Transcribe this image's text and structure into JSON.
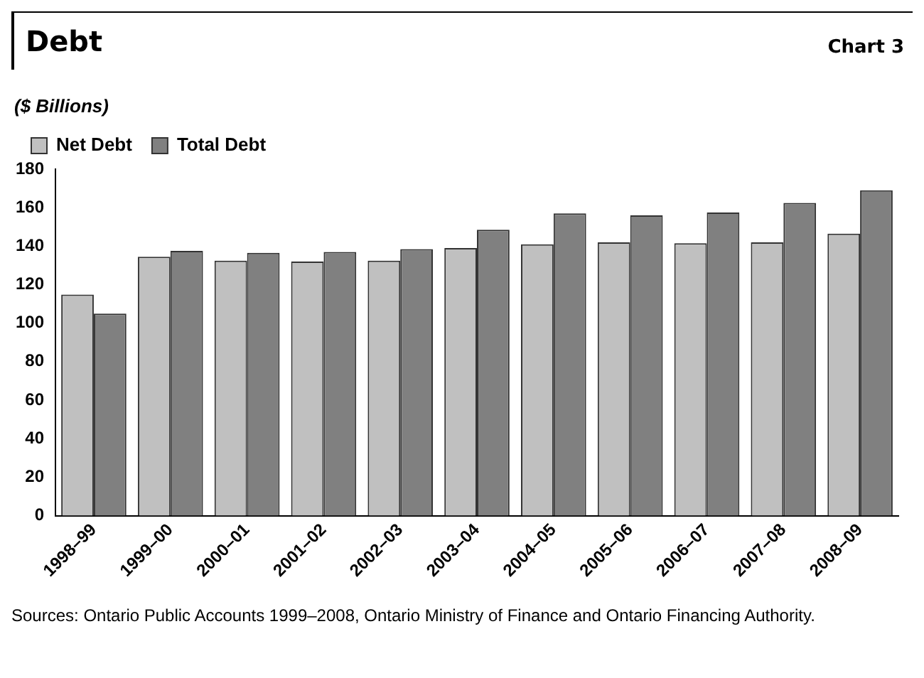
{
  "chart_data": {
    "type": "bar",
    "title": "Debt",
    "subtitle": "Chart 3",
    "ylabel": "($ Billions)",
    "categories": [
      "1998–99",
      "1999–00",
      "2000–01",
      "2001–02",
      "2002–03",
      "2003–04",
      "2004–05",
      "2005–06",
      "2006–07",
      "2007–08",
      "2008–09"
    ],
    "series": [
      {
        "name": "Net Debt",
        "color": "#c0c0c0",
        "values": [
          114.8,
          134.5,
          132.5,
          132,
          132.5,
          139,
          141,
          142,
          141.5,
          142,
          146.5
        ]
      },
      {
        "name": "Total Debt",
        "color": "#808080",
        "values": [
          105,
          137.5,
          136.5,
          137,
          138.5,
          148.5,
          157,
          156,
          157.5,
          162.5,
          169
        ]
      }
    ],
    "ylim": [
      0,
      180
    ],
    "yticks": [
      0,
      20,
      40,
      60,
      80,
      100,
      120,
      140,
      160,
      180
    ],
    "grid": false,
    "legend": "top left",
    "annotations": [
      "Sources: Ontario Public Accounts 1999–2008, Ontario Ministry of Finance and Ontario Financing Authority."
    ]
  }
}
